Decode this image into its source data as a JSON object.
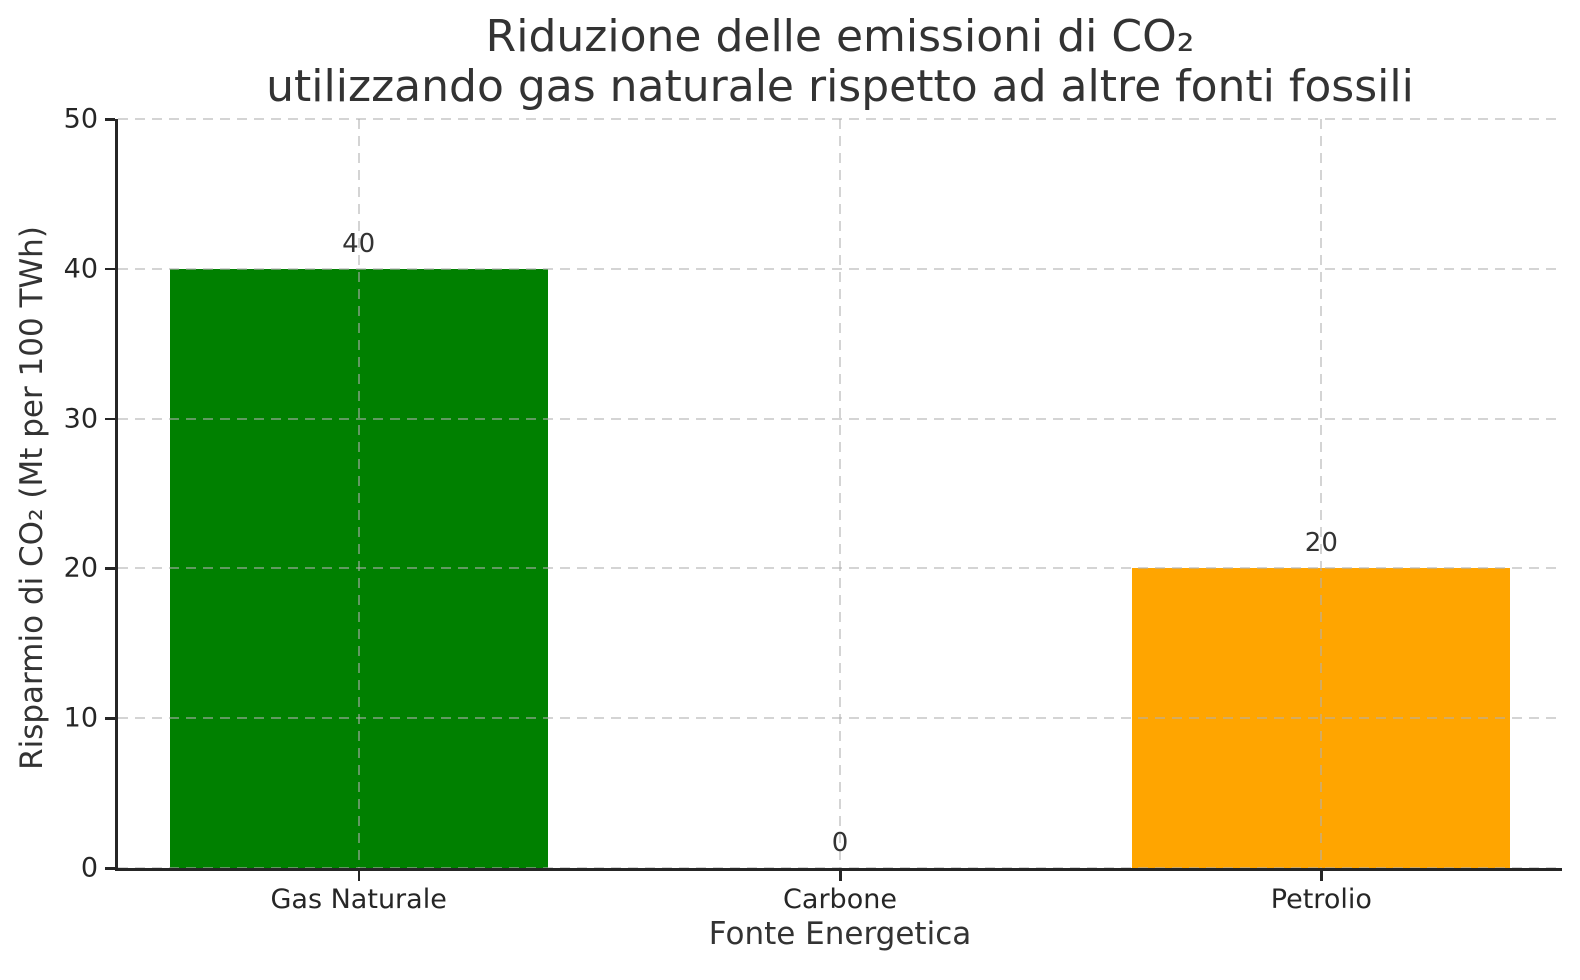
{
  "title": {
    "line1": "Riduzione delle emissioni di CO₂",
    "line2": "utilizzando gas naturale rispetto ad altre fonti fossili"
  },
  "chart_data": {
    "type": "bar",
    "title": "Riduzione delle emissioni di CO₂\nutilizzando gas naturale rispetto ad altre fonti fossili",
    "xlabel": "Fonte Energetica",
    "ylabel": "Risparmio di CO₂ (Mt per 100 TWh)",
    "categories": [
      "Gas Naturale",
      "Carbone",
      "Petrolio"
    ],
    "values": [
      40,
      0,
      20
    ],
    "value_labels": [
      "40",
      "0",
      "20"
    ],
    "bar_colors": [
      "#008000",
      null,
      "#ffa500"
    ],
    "ylim": [
      0,
      50
    ],
    "yticks": [
      0,
      10,
      20,
      30,
      40,
      50
    ],
    "grid": {
      "axis": "both",
      "style": "dashed",
      "on": true
    },
    "legend": "none"
  },
  "colors": {
    "bar_green": "#008000",
    "bar_orange": "#ffa500",
    "grid": "#b0b0b0",
    "axis": "#262626",
    "text": "#333333",
    "background": "#ffffff"
  }
}
